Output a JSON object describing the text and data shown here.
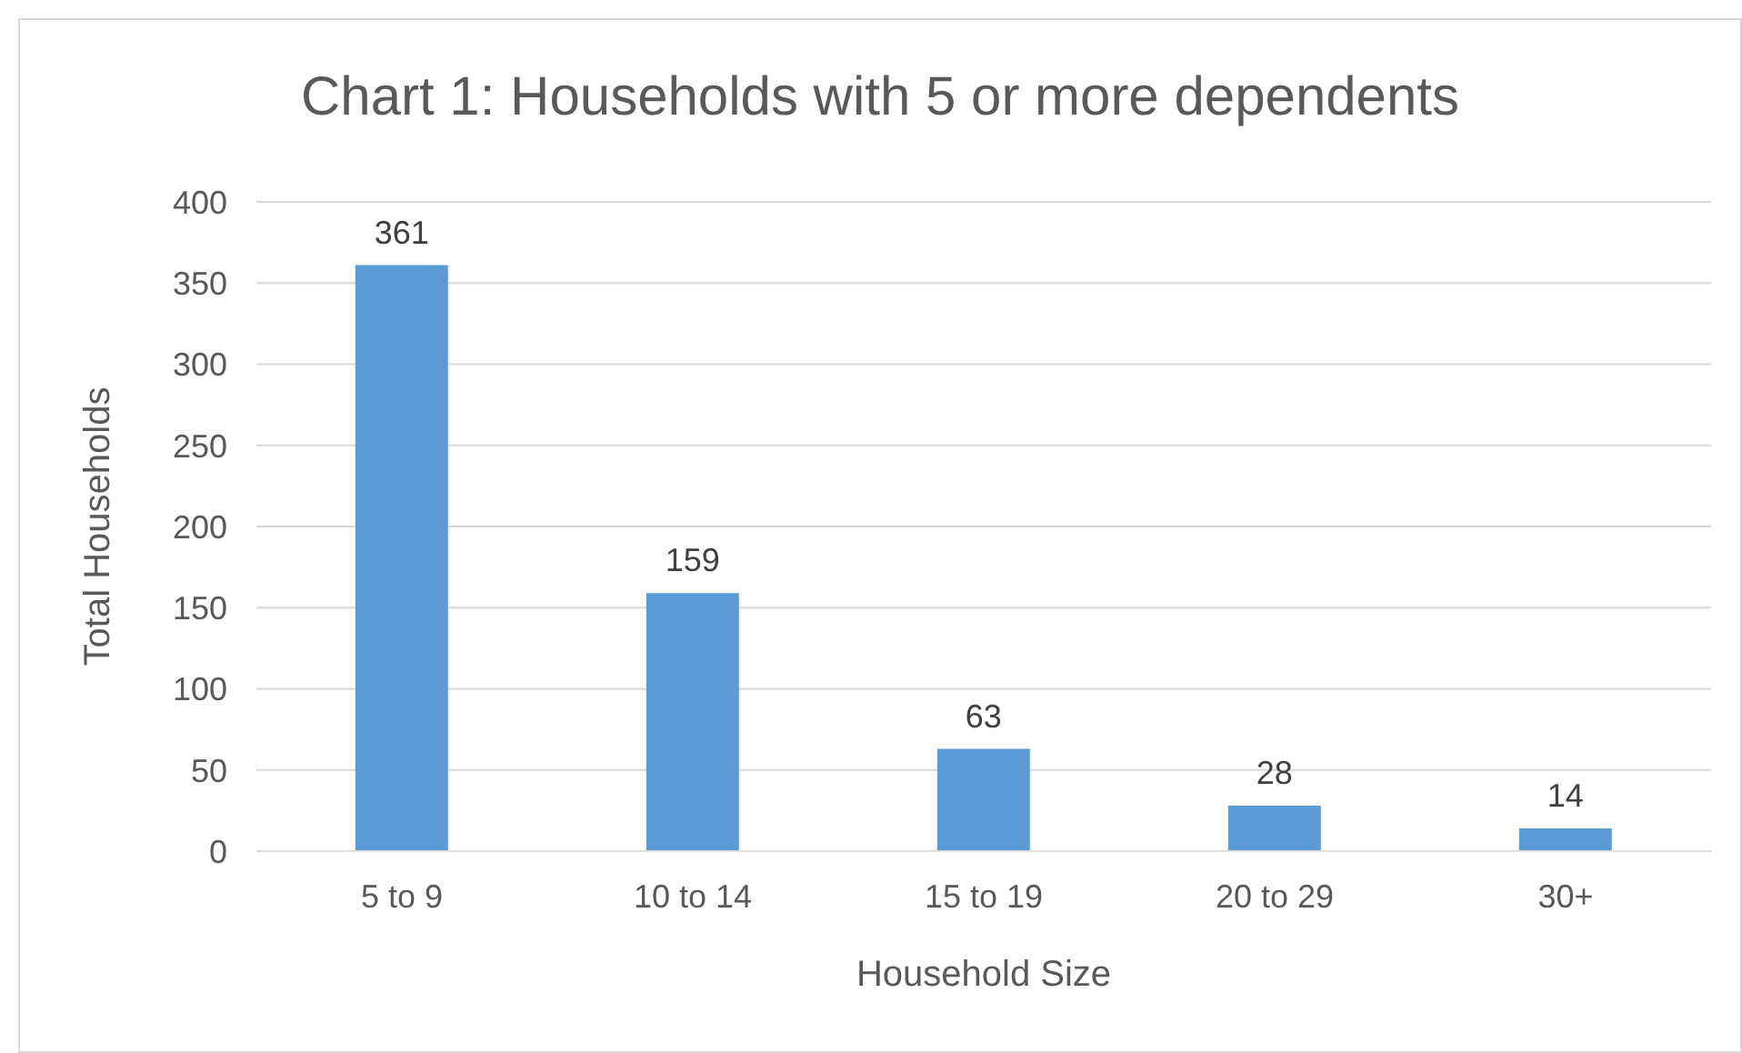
{
  "chart_data": {
    "type": "bar",
    "title": "Chart 1: Households with 5 or more dependents",
    "xlabel": "Household Size",
    "ylabel": "Total Households",
    "categories": [
      "5 to 9",
      "10 to 14",
      "15 to 19",
      "20 to 29",
      "30+"
    ],
    "values": [
      361,
      159,
      63,
      28,
      14
    ],
    "color": "#5b9bd5",
    "ylim": [
      0,
      400
    ],
    "yticks": [
      0,
      50,
      100,
      150,
      200,
      250,
      300,
      350,
      400
    ],
    "grid": "y",
    "data_labels": true
  }
}
